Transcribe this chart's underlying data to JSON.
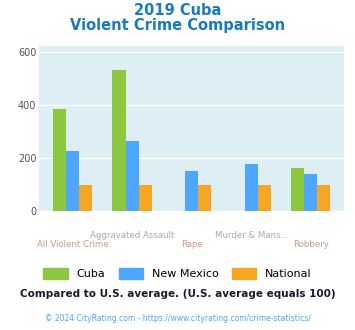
{
  "title_line1": "2019 Cuba",
  "title_line2": "Violent Crime Comparison",
  "categories": [
    "All Violent Crime",
    "Aggravated Assault",
    "Rape",
    "Murder & Mans...",
    "Robbery"
  ],
  "label_top": [
    "",
    "Aggravated Assault",
    "",
    "Murder & Mans...",
    ""
  ],
  "label_bottom": [
    "All Violent Crime",
    "",
    "Rape",
    "",
    "Robbery"
  ],
  "series": {
    "Cuba": [
      385,
      530,
      0,
      0,
      163
    ],
    "New Mexico": [
      225,
      263,
      150,
      178,
      138
    ],
    "National": [
      100,
      100,
      100,
      100,
      100
    ]
  },
  "colors": {
    "Cuba": "#8dc63f",
    "New Mexico": "#4da6ff",
    "National": "#f5a623"
  },
  "ylim": [
    0,
    620
  ],
  "yticks": [
    0,
    200,
    400,
    600
  ],
  "plot_bg": "#ddeef4",
  "title_color": "#1a7abf",
  "label_top_color": "#aaaaaa",
  "label_bottom_color": "#cc9988",
  "footer_text": "Compared to U.S. average. (U.S. average equals 100)",
  "footer_color": "#1a1a2e",
  "copyright_text": "© 2024 CityRating.com - https://www.cityrating.com/crime-statistics/",
  "copyright_color": "#4da6ff",
  "grid_color": "#ffffff",
  "bar_width": 0.22
}
